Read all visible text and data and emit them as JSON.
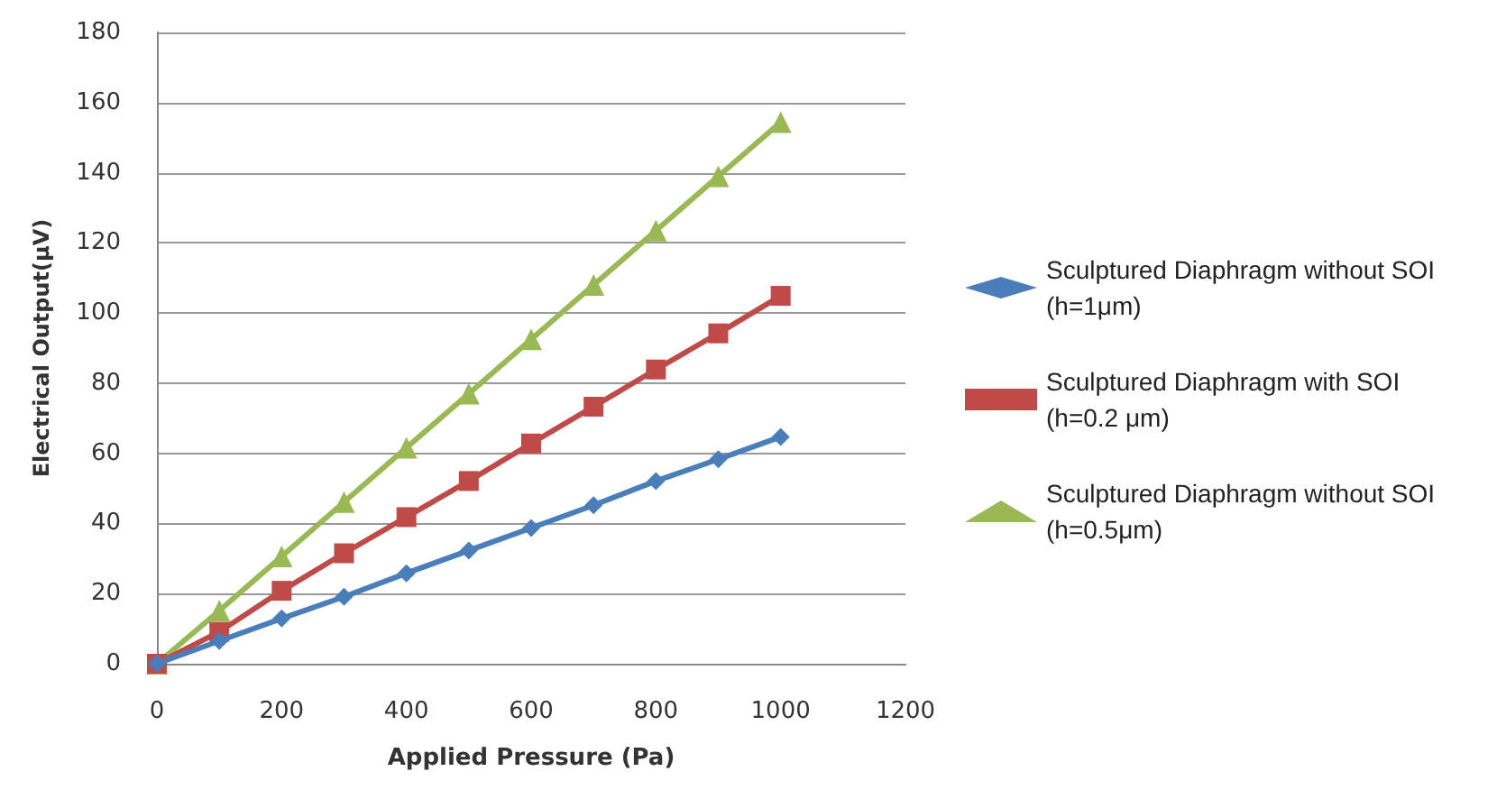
{
  "chart_data": {
    "type": "line",
    "xlabel": "Applied Pressure (Pa)",
    "ylabel": "Electrical Output(μV)",
    "x": [
      0,
      100,
      200,
      300,
      400,
      500,
      600,
      700,
      800,
      900,
      1000
    ],
    "series": [
      {
        "name": "Sculptured Diaphragm without SOI (h=1μm)",
        "color": "#4a7ebb",
        "marker": "diamond",
        "values": [
          0,
          6.5,
          12.9,
          19.1,
          25.8,
          32.3,
          38.7,
          45.2,
          52.1,
          58.3,
          64.7
        ]
      },
      {
        "name": "Sculptured Diaphragm with SOI (h=0.2 μm)",
        "color": "#be4b48",
        "marker": "square",
        "values": [
          0,
          9.1,
          20.8,
          31.5,
          41.8,
          52.1,
          62.8,
          73.3,
          83.9,
          94.2,
          104.9
        ]
      },
      {
        "name": "Sculptured Diaphragm without SOI (h=0.5μm)",
        "color": "#98b954",
        "marker": "triangle",
        "values": [
          0,
          15.1,
          30.6,
          46.1,
          61.6,
          77,
          92.5,
          108,
          123.5,
          139,
          154.4
        ]
      }
    ],
    "xlim": [
      0,
      1200
    ],
    "xticks": [
      0,
      200,
      400,
      600,
      800,
      1000,
      1200
    ],
    "ylim": [
      0,
      180
    ],
    "yticks": [
      0,
      20,
      40,
      60,
      80,
      100,
      120,
      140,
      160,
      180
    ],
    "grid": "y",
    "legend": "right",
    "line_style": "solid"
  }
}
